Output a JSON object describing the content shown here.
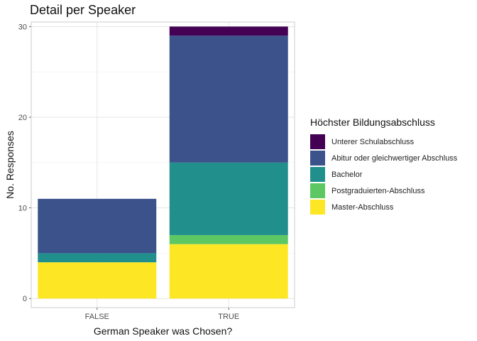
{
  "chart_data": {
    "type": "bar",
    "stacked": true,
    "title": "Detail per Speaker",
    "xlabel": "German Speaker was Chosen?",
    "ylabel": "No. Responses",
    "categories": [
      "FALSE",
      "TRUE"
    ],
    "ylim": [
      0,
      30.5
    ],
    "yticks": [
      0,
      10,
      20,
      30
    ],
    "grid": true,
    "legend_title": "Höchster Bildungsabschluss",
    "legend_position": "right",
    "series": [
      {
        "name": "Master-Abschluss",
        "color": "#FDE725",
        "values": [
          4,
          6
        ]
      },
      {
        "name": "Postgraduierten-Abschluss",
        "color": "#5DC863",
        "values": [
          0,
          1
        ]
      },
      {
        "name": "Bachelor",
        "color": "#21908C",
        "values": [
          1,
          8
        ]
      },
      {
        "name": "Abitur oder gleichwertiger Abschluss",
        "color": "#3B528B",
        "values": [
          6,
          14
        ]
      },
      {
        "name": "Unterer Schulabschluss",
        "color": "#440154",
        "values": [
          0,
          1
        ]
      }
    ],
    "legend_order": [
      "Unterer Schulabschluss",
      "Abitur oder gleichwertiger Abschluss",
      "Bachelor",
      "Postgraduierten-Abschluss",
      "Master-Abschluss"
    ]
  }
}
